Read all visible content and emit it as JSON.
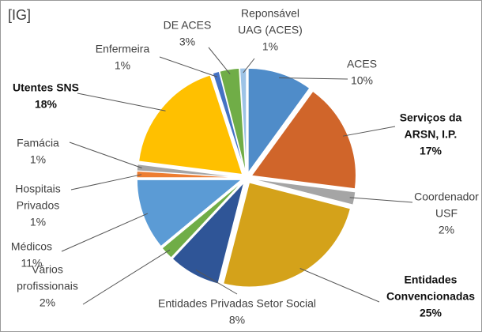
{
  "chart_data": {
    "type": "pie",
    "title": "[IG]",
    "categories": [
      [
        "ACES"
      ],
      [
        "Serviços da",
        "ARSN, I.P."
      ],
      [
        "Coordenador",
        "USF"
      ],
      [
        "Entidades",
        "Convencionadas"
      ],
      [
        "Entidades Privadas Setor Social"
      ],
      [
        "Vários",
        "profissionais"
      ],
      [
        "Médicos"
      ],
      [
        "Hospitais",
        "Privados"
      ],
      [
        "Famácia"
      ],
      [
        "Utentes SNS"
      ],
      [
        "Enfermeira"
      ],
      [
        "DE ACES"
      ],
      [
        "Reponsável",
        "UAG (ACES)"
      ]
    ],
    "values": [
      10,
      17,
      2,
      25,
      8,
      2,
      11,
      1,
      1,
      18,
      1,
      3,
      1
    ],
    "value_labels": [
      "10%",
      "17%",
      "2%",
      "25%",
      "8%",
      "2%",
      "11%",
      "1%",
      "1%",
      "18%",
      "1%",
      "3%",
      "1%"
    ],
    "colors": [
      "#4f8cc9",
      "#d0652a",
      "#a5a5a5",
      "#d4a21a",
      "#2f5597",
      "#70ad47",
      "#5b9bd5",
      "#ed7d31",
      "#a5a5a5",
      "#ffc000",
      "#4472c4",
      "#70ad47",
      "#9dc3e6"
    ],
    "bold": [
      false,
      true,
      false,
      true,
      false,
      false,
      false,
      false,
      false,
      true,
      false,
      false,
      false
    ]
  }
}
